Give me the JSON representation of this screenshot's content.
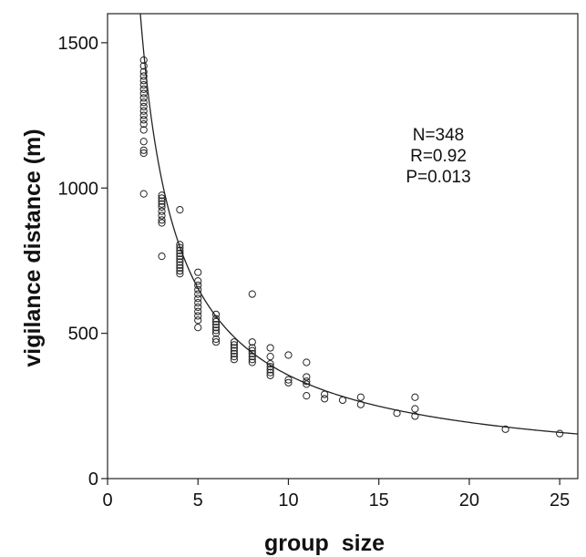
{
  "chart_data": {
    "type": "scatter",
    "xlabel": "group  size",
    "ylabel": "vigilance distance (m)",
    "xlim": [
      0,
      26
    ],
    "ylim": [
      0,
      1600
    ],
    "x_ticks": [
      0,
      5,
      10,
      15,
      20,
      25
    ],
    "y_ticks": [
      0,
      500,
      1000,
      1500
    ],
    "x_tick_labels": [
      "0",
      "5",
      "10",
      "15",
      "20",
      "25"
    ],
    "y_tick_labels": [
      "0",
      "500",
      "1000",
      "1500"
    ],
    "grid": false,
    "legend": "none",
    "annotations": [
      "N=348",
      "R=0.92",
      "P=0.013"
    ],
    "fit_curve": {
      "form": "power",
      "a": 2700,
      "b": -0.88,
      "x_start": 1.5,
      "x_end": 26
    },
    "series": [
      {
        "points": [
          [
            2,
            1440
          ],
          [
            2,
            1420
          ],
          [
            2,
            1400
          ],
          [
            2,
            1385
          ],
          [
            2,
            1370
          ],
          [
            2,
            1355
          ],
          [
            2,
            1340
          ],
          [
            2,
            1325
          ],
          [
            2,
            1310
          ],
          [
            2,
            1295
          ],
          [
            2,
            1280
          ],
          [
            2,
            1265
          ],
          [
            2,
            1250
          ],
          [
            2,
            1235
          ],
          [
            2,
            1220
          ],
          [
            2,
            1200
          ],
          [
            2,
            1160
          ],
          [
            2,
            1130
          ],
          [
            2,
            1120
          ],
          [
            2,
            980
          ],
          [
            3,
            975
          ],
          [
            3,
            965
          ],
          [
            3,
            955
          ],
          [
            3,
            945
          ],
          [
            3,
            935
          ],
          [
            3,
            920
          ],
          [
            3,
            905
          ],
          [
            3,
            890
          ],
          [
            3,
            880
          ],
          [
            3,
            765
          ],
          [
            4,
            925
          ],
          [
            4,
            805
          ],
          [
            4,
            795
          ],
          [
            4,
            785
          ],
          [
            4,
            775
          ],
          [
            4,
            765
          ],
          [
            4,
            755
          ],
          [
            4,
            745
          ],
          [
            4,
            735
          ],
          [
            4,
            725
          ],
          [
            4,
            715
          ],
          [
            4,
            705
          ],
          [
            5,
            710
          ],
          [
            5,
            680
          ],
          [
            5,
            665
          ],
          [
            5,
            650
          ],
          [
            5,
            635
          ],
          [
            5,
            620
          ],
          [
            5,
            605
          ],
          [
            5,
            590
          ],
          [
            5,
            575
          ],
          [
            5,
            560
          ],
          [
            5,
            545
          ],
          [
            5,
            520
          ],
          [
            6,
            565
          ],
          [
            6,
            550
          ],
          [
            6,
            540
          ],
          [
            6,
            530
          ],
          [
            6,
            520
          ],
          [
            6,
            510
          ],
          [
            6,
            500
          ],
          [
            6,
            480
          ],
          [
            6,
            470
          ],
          [
            7,
            470
          ],
          [
            7,
            460
          ],
          [
            7,
            450
          ],
          [
            7,
            440
          ],
          [
            7,
            430
          ],
          [
            7,
            420
          ],
          [
            7,
            410
          ],
          [
            8,
            635
          ],
          [
            8,
            470
          ],
          [
            8,
            450
          ],
          [
            8,
            440
          ],
          [
            8,
            430
          ],
          [
            8,
            420
          ],
          [
            8,
            410
          ],
          [
            8,
            400
          ],
          [
            9,
            450
          ],
          [
            9,
            420
          ],
          [
            9,
            395
          ],
          [
            9,
            385
          ],
          [
            9,
            375
          ],
          [
            9,
            365
          ],
          [
            9,
            355
          ],
          [
            10,
            425
          ],
          [
            10,
            340
          ],
          [
            10,
            330
          ],
          [
            11,
            400
          ],
          [
            11,
            350
          ],
          [
            11,
            335
          ],
          [
            11,
            325
          ],
          [
            11,
            285
          ],
          [
            12,
            290
          ],
          [
            12,
            275
          ],
          [
            13,
            270
          ],
          [
            14,
            280
          ],
          [
            14,
            255
          ],
          [
            16,
            225
          ],
          [
            17,
            280
          ],
          [
            17,
            240
          ],
          [
            17,
            215
          ],
          [
            22,
            170
          ],
          [
            25,
            155
          ]
        ]
      }
    ]
  }
}
